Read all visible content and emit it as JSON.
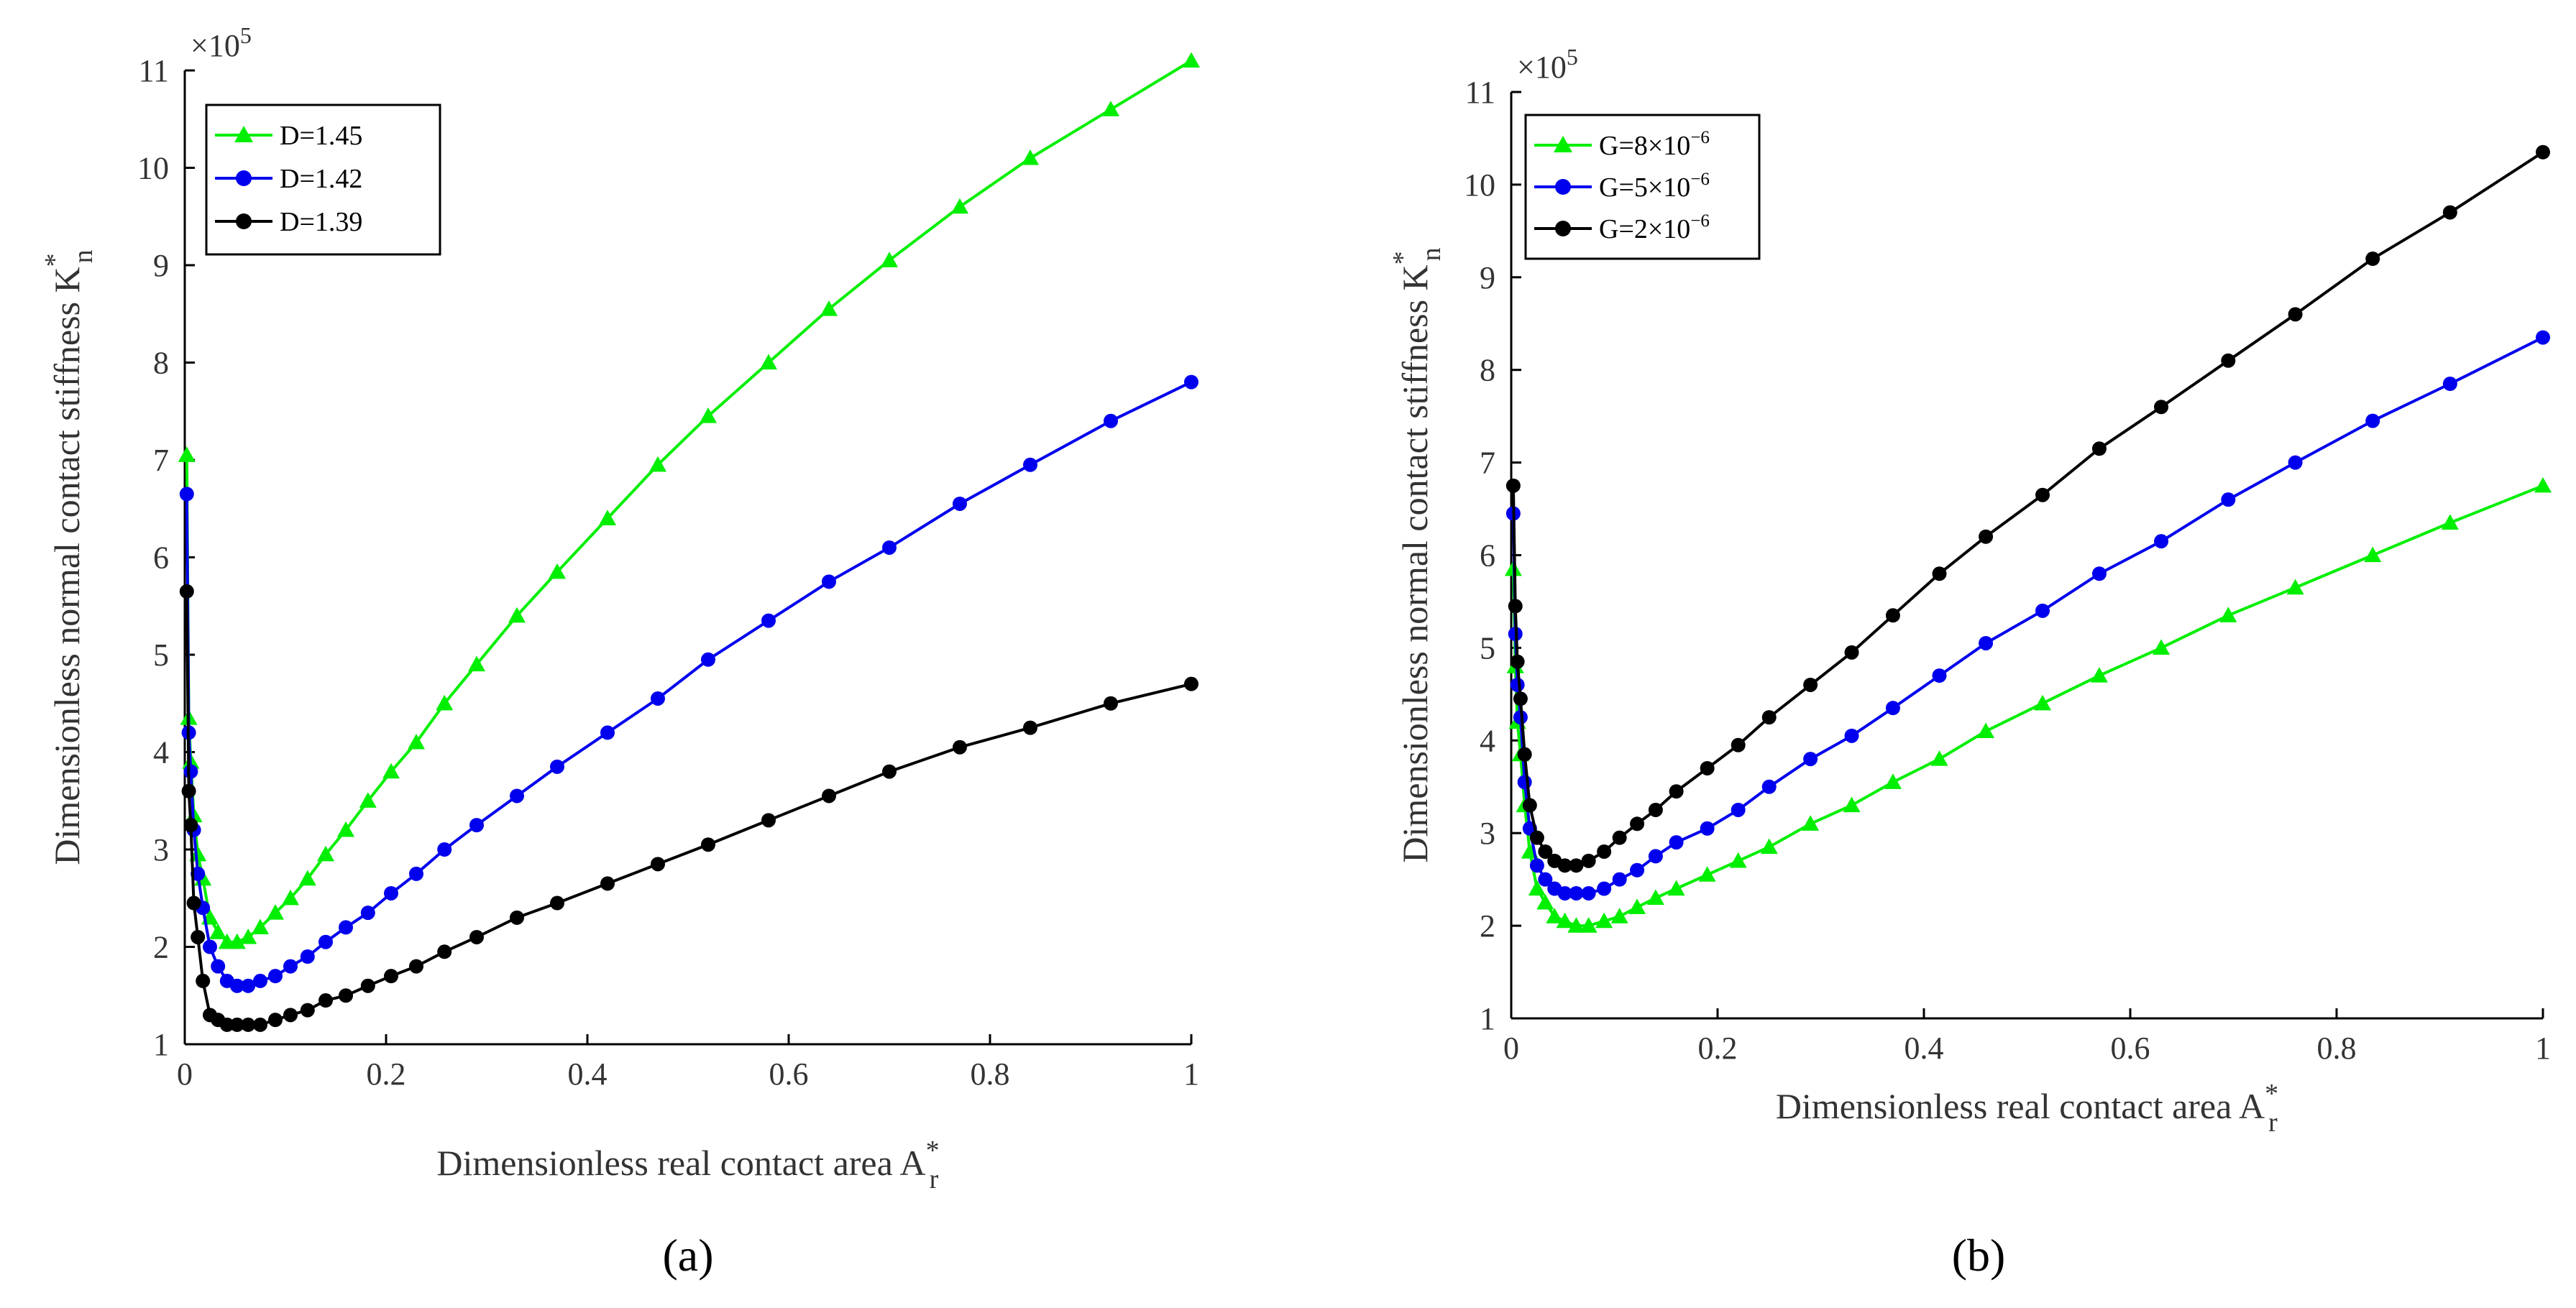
{
  "chart_data": [
    {
      "type": "line",
      "panel_label": "(a)",
      "title": "",
      "xlabel": "Dimensionless real contact area A",
      "xlabel_sup": "*",
      "xlabel_sub": "r",
      "ylabel": "Dimensionless normal contact stiffness K",
      "ylabel_sup": "*",
      "ylabel_sub": "n",
      "y_multiplier": "×10",
      "y_multiplier_exp": "5",
      "xlim": [
        0,
        1
      ],
      "ylim": [
        1,
        11
      ],
      "xticks": [
        "0",
        "0.2",
        "0.4",
        "0.6",
        "0.8",
        "1"
      ],
      "xtick_values": [
        0,
        0.2,
        0.4,
        0.6,
        0.8,
        1
      ],
      "yticks": [
        "1",
        "2",
        "3",
        "4",
        "5",
        "6",
        "7",
        "8",
        "9",
        "10",
        "11"
      ],
      "ytick_values": [
        1,
        2,
        3,
        4,
        5,
        6,
        7,
        8,
        9,
        10,
        11
      ],
      "legend_position": "top-left",
      "series": [
        {
          "name": "D=1.45",
          "label_parts": [
            "D=1.45"
          ],
          "color": "#00ee00",
          "marker": "triangle",
          "x": [
            0.002,
            0.004,
            0.006,
            0.009,
            0.013,
            0.018,
            0.025,
            0.033,
            0.042,
            0.052,
            0.063,
            0.075,
            0.09,
            0.105,
            0.122,
            0.14,
            0.16,
            0.182,
            0.205,
            0.23,
            0.258,
            0.29,
            0.33,
            0.37,
            0.42,
            0.47,
            0.52,
            0.58,
            0.64,
            0.7,
            0.77,
            0.84,
            0.92,
            1.0
          ],
          "y": [
            7.05,
            4.35,
            3.9,
            3.35,
            2.95,
            2.7,
            2.3,
            2.15,
            2.05,
            2.05,
            2.1,
            2.2,
            2.35,
            2.5,
            2.7,
            2.95,
            3.2,
            3.5,
            3.8,
            4.1,
            4.5,
            4.9,
            5.4,
            5.85,
            6.4,
            6.95,
            7.45,
            8.0,
            8.55,
            9.05,
            9.6,
            10.1,
            10.6,
            11.1
          ]
        },
        {
          "name": "D=1.42",
          "label_parts": [
            "D=1.42"
          ],
          "color": "#0000ee",
          "marker": "circle",
          "x": [
            0.002,
            0.004,
            0.006,
            0.009,
            0.013,
            0.018,
            0.025,
            0.033,
            0.042,
            0.052,
            0.063,
            0.075,
            0.09,
            0.105,
            0.122,
            0.14,
            0.16,
            0.182,
            0.205,
            0.23,
            0.258,
            0.29,
            0.33,
            0.37,
            0.42,
            0.47,
            0.52,
            0.58,
            0.64,
            0.7,
            0.77,
            0.84,
            0.92,
            1.0
          ],
          "y": [
            6.65,
            4.2,
            3.8,
            3.2,
            2.75,
            2.4,
            2.0,
            1.8,
            1.65,
            1.6,
            1.6,
            1.65,
            1.7,
            1.8,
            1.9,
            2.05,
            2.2,
            2.35,
            2.55,
            2.75,
            3.0,
            3.25,
            3.55,
            3.85,
            4.2,
            4.55,
            4.95,
            5.35,
            5.75,
            6.1,
            6.55,
            6.95,
            7.4,
            7.8
          ]
        },
        {
          "name": "D=1.39",
          "label_parts": [
            "D=1.39"
          ],
          "color": "#000000",
          "marker": "circle",
          "x": [
            0.002,
            0.004,
            0.006,
            0.009,
            0.013,
            0.018,
            0.025,
            0.033,
            0.042,
            0.052,
            0.063,
            0.075,
            0.09,
            0.105,
            0.122,
            0.14,
            0.16,
            0.182,
            0.205,
            0.23,
            0.258,
            0.29,
            0.33,
            0.37,
            0.42,
            0.47,
            0.52,
            0.58,
            0.64,
            0.7,
            0.77,
            0.84,
            0.92,
            1.0
          ],
          "y": [
            5.65,
            3.6,
            3.25,
            2.45,
            2.1,
            1.65,
            1.3,
            1.25,
            1.2,
            1.2,
            1.2,
            1.2,
            1.25,
            1.3,
            1.35,
            1.45,
            1.5,
            1.6,
            1.7,
            1.8,
            1.95,
            2.1,
            2.3,
            2.45,
            2.65,
            2.85,
            3.05,
            3.3,
            3.55,
            3.8,
            4.05,
            4.25,
            4.5,
            4.7
          ]
        }
      ]
    },
    {
      "type": "line",
      "panel_label": "(b)",
      "title": "",
      "xlabel": "Dimensionless real contact area A",
      "xlabel_sup": "*",
      "xlabel_sub": "r",
      "ylabel": "Dimensionless normal contact stiffness K",
      "ylabel_sup": "*",
      "ylabel_sub": "n",
      "y_multiplier": "×10",
      "y_multiplier_exp": "5",
      "xlim": [
        0,
        1
      ],
      "ylim": [
        1,
        11
      ],
      "xticks": [
        "0",
        "0.2",
        "0.4",
        "0.6",
        "0.8",
        "1"
      ],
      "xtick_values": [
        0,
        0.2,
        0.4,
        0.6,
        0.8,
        1
      ],
      "yticks": [
        "1",
        "2",
        "3",
        "4",
        "5",
        "6",
        "7",
        "8",
        "9",
        "10",
        "11"
      ],
      "ytick_values": [
        1,
        2,
        3,
        4,
        5,
        6,
        7,
        8,
        9,
        10,
        11
      ],
      "legend_position": "top-left",
      "series": [
        {
          "name": "G=8×10^-6",
          "label_parts": [
            "G=8×10",
            "−6"
          ],
          "color": "#00ee00",
          "marker": "triangle",
          "x": [
            0.002,
            0.004,
            0.006,
            0.009,
            0.013,
            0.018,
            0.025,
            0.033,
            0.042,
            0.052,
            0.063,
            0.075,
            0.09,
            0.105,
            0.122,
            0.14,
            0.16,
            0.19,
            0.22,
            0.25,
            0.29,
            0.33,
            0.37,
            0.415,
            0.46,
            0.515,
            0.57,
            0.63,
            0.695,
            0.76,
            0.835,
            0.91,
            1.0
          ],
          "y": [
            5.85,
            4.8,
            4.2,
            3.85,
            3.3,
            2.8,
            2.4,
            2.25,
            2.1,
            2.05,
            2.0,
            2.0,
            2.05,
            2.1,
            2.2,
            2.3,
            2.4,
            2.55,
            2.7,
            2.85,
            3.1,
            3.3,
            3.55,
            3.8,
            4.1,
            4.4,
            4.7,
            5.0,
            5.35,
            5.65,
            6.0,
            6.35,
            6.75
          ]
        },
        {
          "name": "G=5×10^-6",
          "label_parts": [
            "G=5×10",
            "−6"
          ],
          "color": "#0000ee",
          "marker": "circle",
          "x": [
            0.002,
            0.004,
            0.006,
            0.009,
            0.013,
            0.018,
            0.025,
            0.033,
            0.042,
            0.052,
            0.063,
            0.075,
            0.09,
            0.105,
            0.122,
            0.14,
            0.16,
            0.19,
            0.22,
            0.25,
            0.29,
            0.33,
            0.37,
            0.415,
            0.46,
            0.515,
            0.57,
            0.63,
            0.695,
            0.76,
            0.835,
            0.91,
            1.0
          ],
          "y": [
            6.45,
            5.15,
            4.6,
            4.25,
            3.55,
            3.05,
            2.65,
            2.5,
            2.4,
            2.35,
            2.35,
            2.35,
            2.4,
            2.5,
            2.6,
            2.75,
            2.9,
            3.05,
            3.25,
            3.5,
            3.8,
            4.05,
            4.35,
            4.7,
            5.05,
            5.4,
            5.8,
            6.15,
            6.6,
            7.0,
            7.45,
            7.85,
            8.35
          ]
        },
        {
          "name": "G=2×10^-6",
          "label_parts": [
            "G=2×10",
            "−6"
          ],
          "color": "#000000",
          "marker": "circle",
          "x": [
            0.002,
            0.004,
            0.006,
            0.009,
            0.013,
            0.018,
            0.025,
            0.033,
            0.042,
            0.052,
            0.063,
            0.075,
            0.09,
            0.105,
            0.122,
            0.14,
            0.16,
            0.19,
            0.22,
            0.25,
            0.29,
            0.33,
            0.37,
            0.415,
            0.46,
            0.515,
            0.57,
            0.63,
            0.695,
            0.76,
            0.835,
            0.91,
            1.0
          ],
          "y": [
            6.75,
            5.45,
            4.85,
            4.45,
            3.85,
            3.3,
            2.95,
            2.8,
            2.7,
            2.65,
            2.65,
            2.7,
            2.8,
            2.95,
            3.1,
            3.25,
            3.45,
            3.7,
            3.95,
            4.25,
            4.6,
            4.95,
            5.35,
            5.8,
            6.2,
            6.65,
            7.15,
            7.6,
            8.1,
            8.6,
            9.2,
            9.7,
            10.35
          ]
        }
      ]
    }
  ]
}
